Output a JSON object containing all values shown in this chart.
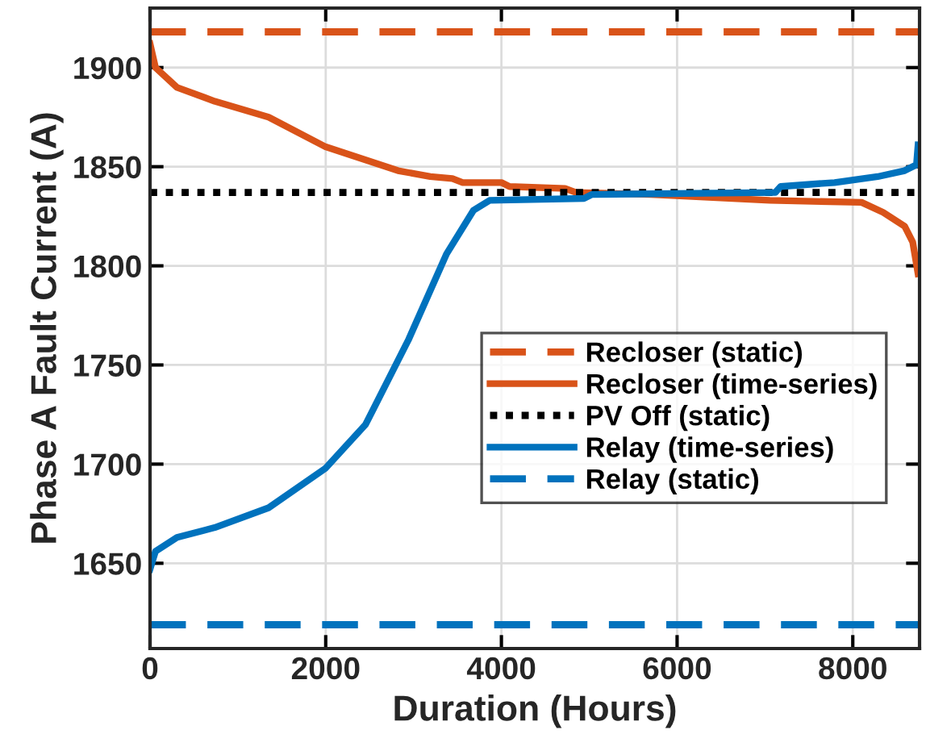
{
  "chart_data": {
    "type": "line",
    "xlabel": "Duration (Hours)",
    "ylabel": "Phase A Fault Current (A)",
    "xlim": [
      0,
      8760
    ],
    "ylim": [
      1607,
      1930
    ],
    "xticks": [
      0,
      2000,
      4000,
      6000,
      8000
    ],
    "yticks": [
      1650,
      1700,
      1750,
      1800,
      1850,
      1900
    ],
    "grid": true,
    "legend": "right",
    "series": [
      {
        "name": "Recloser (static)",
        "color": "#d95319",
        "line_style": "dashed",
        "x": [
          0,
          8760
        ],
        "values": [
          1918,
          1918
        ]
      },
      {
        "name": "Recloser (time-series)",
        "color": "#d95319",
        "line_style": "solid",
        "x": [
          0,
          62,
          307,
          736,
          1350,
          2000,
          2823,
          3190,
          3442,
          3560,
          4000,
          4092,
          4725,
          4848,
          5706,
          7056,
          8100,
          8345,
          8590,
          8682,
          8743
        ],
        "values": [
          1912,
          1900,
          1890,
          1883,
          1875,
          1860,
          1848,
          1845,
          1844,
          1842,
          1842,
          1840,
          1839,
          1837,
          1836,
          1833,
          1832,
          1827,
          1820,
          1812,
          1796
        ]
      },
      {
        "name": "PV Off (static)",
        "color": "#000000",
        "line_style": "dotted",
        "x": [
          0,
          8760
        ],
        "values": [
          1837,
          1837
        ]
      },
      {
        "name": "Relay (time-series)",
        "color": "#0072bd",
        "line_style": "solid",
        "x": [
          0,
          62,
          307,
          736,
          1350,
          2000,
          2454,
          2945,
          3375,
          3682,
          3865,
          4940,
          5032,
          7118,
          7178,
          7793,
          8283,
          8590,
          8725,
          8743
        ],
        "values": [
          1647,
          1656,
          1663,
          1668,
          1678,
          1698,
          1720,
          1763,
          1806,
          1828,
          1833,
          1834,
          1836,
          1837,
          1840,
          1842,
          1845,
          1848,
          1851,
          1861
        ]
      },
      {
        "name": "Relay (static)",
        "color": "#0072bd",
        "line_style": "dashed",
        "x": [
          0,
          8760
        ],
        "values": [
          1619,
          1619
        ]
      }
    ]
  }
}
